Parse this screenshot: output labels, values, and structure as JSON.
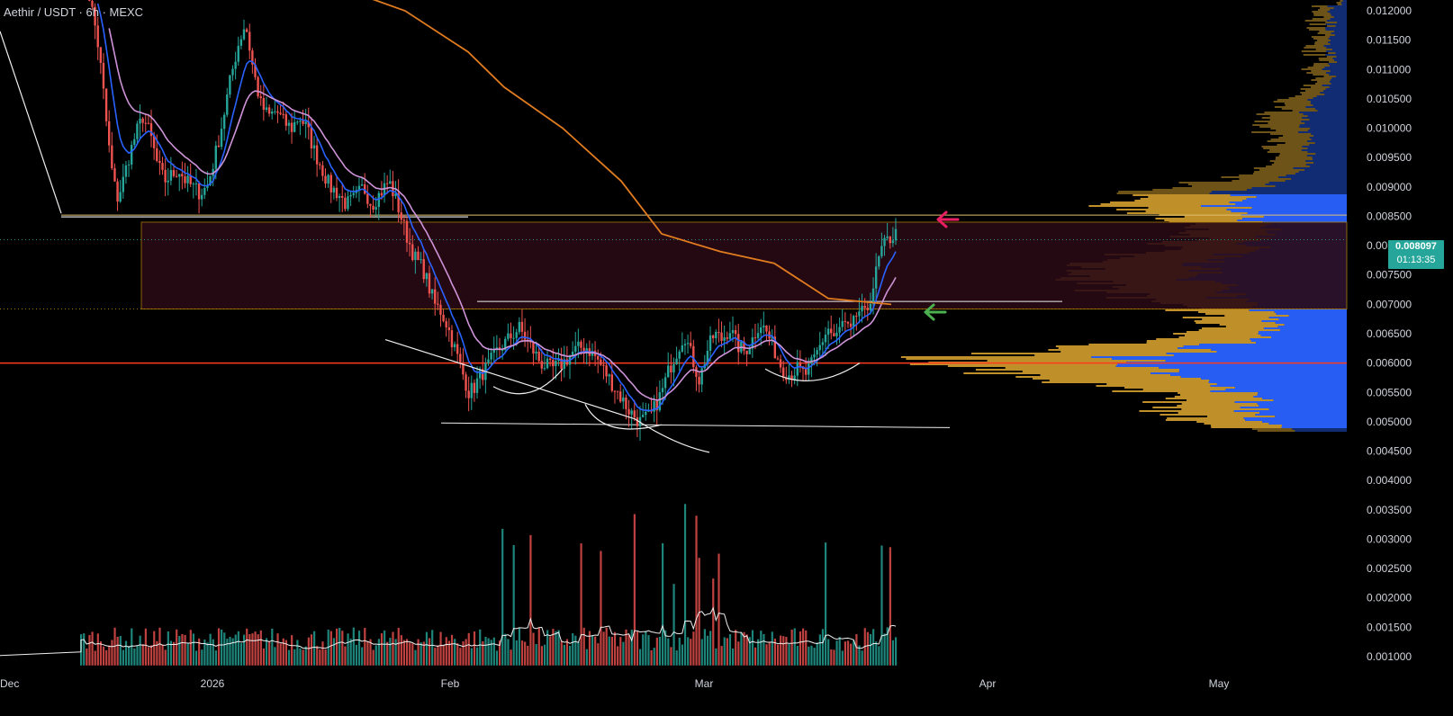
{
  "header": {
    "symbol": "Aethir",
    "pair": "USDT",
    "interval": "6h",
    "exchange": "MEXC",
    "title_text": "Aethir / USDT · 6h · MEXC"
  },
  "price_badge": {
    "price": "0.008097",
    "countdown": "01:13:35",
    "color": "#26a69a"
  },
  "colors": {
    "up": "#26a69a",
    "down": "#ef5350",
    "ema_fast": "#2962ff",
    "ema_slow": "#ce93d8",
    "ma_long": "#e07b1f",
    "zone_fill": "#2a0a14",
    "zone_border": "#b8860b",
    "support_red": "#ff3b1f",
    "arrow_red": "#e91e63",
    "arrow_green": "#4caf50",
    "vp_up": "#c9972b",
    "vp_down": "#2962ff"
  },
  "chart_data": {
    "type": "candlestick",
    "title": "Aethir / USDT · 6h · MEXC",
    "y_axis": {
      "range": [
        0.0008,
        0.0122
      ],
      "tick_labels": [
        "0.012000",
        "0.011500",
        "0.011000",
        "0.010500",
        "0.010000",
        "0.009500",
        "0.009000",
        "0.008500",
        "0.008000",
        "0.007500",
        "0.007000",
        "0.006500",
        "0.006000",
        "0.005500",
        "0.005000",
        "0.004500",
        "0.004000",
        "0.003500",
        "0.003000",
        "0.002500",
        "0.002000",
        "0.001500",
        "0.001000"
      ]
    },
    "x_axis": {
      "tick_labels": [
        "Dec",
        "2026",
        "Feb",
        "Mar",
        "Apr",
        "May"
      ]
    },
    "last_price": 0.008097,
    "levels": {
      "resistance_top": 0.00852,
      "zone_top": 0.0084,
      "zone_bottom": 0.00692,
      "neckline": 0.00705,
      "support": 0.006,
      "base_low": 0.00493,
      "current_dotted": 0.0081
    },
    "price_path": [
      [
        0.0128,
        0.0126,
        0.0122,
        0.0118,
        0.0113,
        0.0106,
        0.0098,
        0.0092,
        0.0088
      ],
      [
        0.009,
        0.0095,
        0.0099,
        0.0102,
        0.0099,
        0.0094,
        0.0091,
        0.0092,
        0.0093,
        0.0091,
        0.009,
        0.0089
      ],
      [
        0.009,
        0.0095,
        0.0101,
        0.0108,
        0.0114,
        0.0118,
        0.011,
        0.0104,
        0.0102,
        0.0103,
        0.0101,
        0.01,
        0.0102,
        0.01,
        0.0096,
        0.0093,
        0.009
      ],
      [
        0.0089,
        0.0087,
        0.0088,
        0.009,
        0.0087,
        0.0089,
        0.0091,
        0.0087,
        0.0082,
        0.0078
      ],
      [
        0.0076,
        0.0073,
        0.007,
        0.0069,
        0.0067,
        0.0064,
        0.0061,
        0.0058,
        0.0055,
        0.0056,
        0.0058
      ],
      [
        0.0059,
        0.0062,
        0.0064,
        0.0066,
        0.0063,
        0.006,
        0.0059,
        0.006,
        0.0062,
        0.0063,
        0.0061,
        0.0058,
        0.0055,
        0.0052,
        0.005,
        0.0051
      ],
      [
        0.0055,
        0.0059,
        0.0062,
        0.0065,
        0.0061,
        0.0057,
        0.0062,
        0.0065,
        0.0064,
        0.0066,
        0.0063,
        0.0062,
        0.0064,
        0.0067,
        0.0065,
        0.0062,
        0.0059,
        0.0058,
        0.0059,
        0.0058,
        0.006,
        0.0063,
        0.0066,
        0.0064,
        0.0067,
        0.0065,
        0.0069,
        0.0068,
        0.0073,
        0.0079,
        0.0081
      ]
    ],
    "volume": {
      "visible_axis_labels_only": true,
      "annotated_peaks": [
        {
          "approx": 0.00362,
          "color": "down"
        },
        {
          "approx": 0.0034,
          "color": "up"
        },
        {
          "approx": 0.00285,
          "color": "up"
        }
      ]
    }
  }
}
